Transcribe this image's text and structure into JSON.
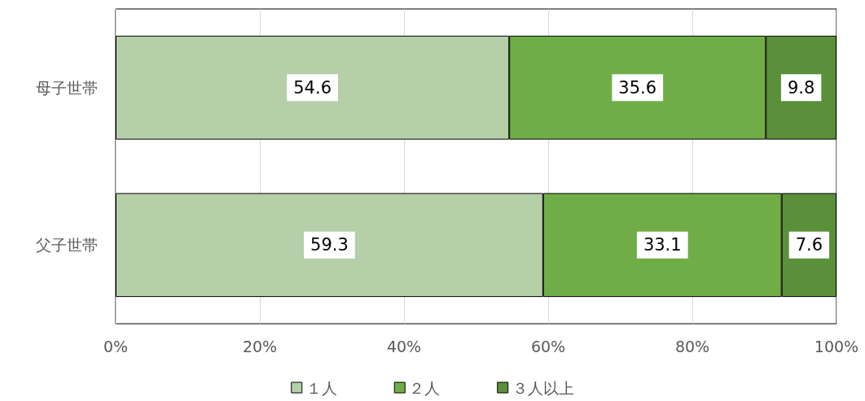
{
  "chart_data": {
    "type": "bar",
    "orientation": "horizontal",
    "stacked": true,
    "categories": [
      "母子世帯",
      "父子世帯"
    ],
    "series": [
      {
        "name": "１人",
        "color": "#b5cfa8",
        "values": [
          54.6,
          59.3
        ]
      },
      {
        "name": "２人",
        "color": "#70ad47",
        "values": [
          35.6,
          33.1
        ]
      },
      {
        "name": "３人以上",
        "color": "#5a9039",
        "values": [
          9.8,
          7.6
        ]
      }
    ],
    "xlim": [
      0,
      100
    ],
    "xticks": [
      {
        "value": 0,
        "label": "0%"
      },
      {
        "value": 20,
        "label": "20%"
      },
      {
        "value": 40,
        "label": "40%"
      },
      {
        "value": 60,
        "label": "60%"
      },
      {
        "value": 80,
        "label": "80%"
      },
      {
        "value": 100,
        "label": "100%"
      }
    ],
    "grid": "x",
    "legend": "bottom",
    "data_labels": true
  }
}
